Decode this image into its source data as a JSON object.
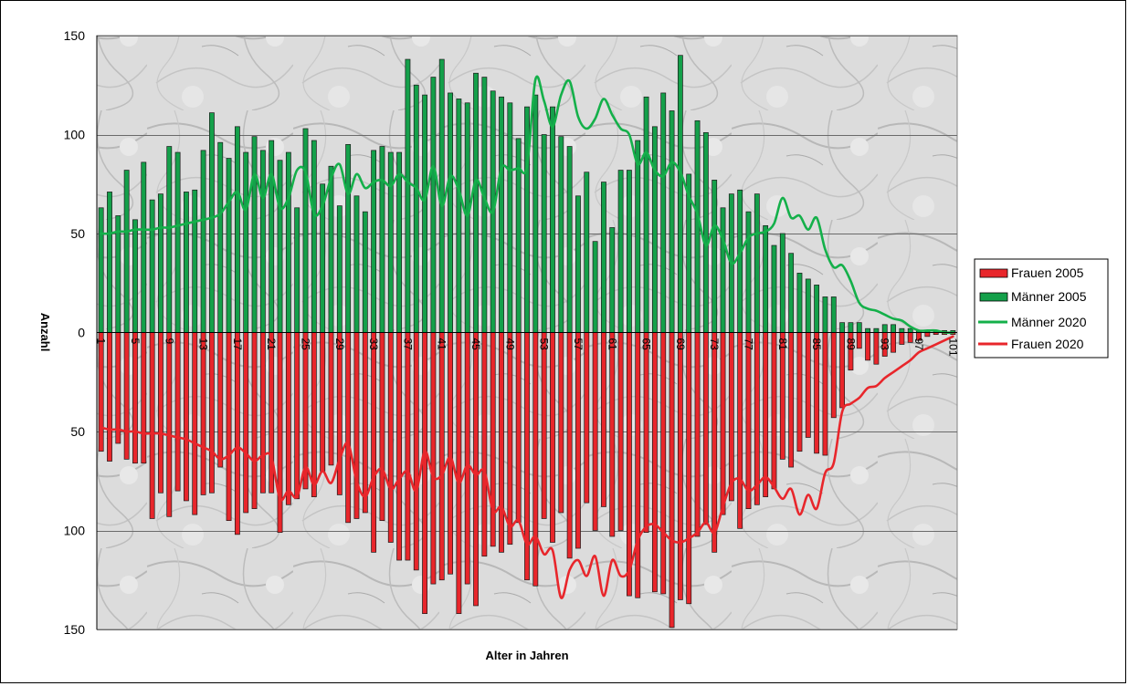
{
  "chart_data": {
    "type": "bar",
    "title": "",
    "xlabel": "Alter in Jahren",
    "ylabel": "Anzahl",
    "y_tick_labels": [
      "150",
      "100",
      "50",
      "0",
      "50",
      "100",
      "150"
    ],
    "ylim": [
      -150,
      150
    ],
    "grid": true,
    "legend_placement": "right",
    "x_tick_labels": [
      "1",
      "5",
      "9",
      "13",
      "17",
      "21",
      "25",
      "29",
      "33",
      "37",
      "41",
      "45",
      "49",
      "53",
      "57",
      "61",
      "65",
      "69",
      "73",
      "77",
      "81",
      "85",
      "89",
      "93",
      "97",
      "101"
    ],
    "x": [
      1,
      2,
      3,
      4,
      5,
      6,
      7,
      8,
      9,
      10,
      11,
      12,
      13,
      14,
      15,
      16,
      17,
      18,
      19,
      20,
      21,
      22,
      23,
      24,
      25,
      26,
      27,
      28,
      29,
      30,
      31,
      32,
      33,
      34,
      35,
      36,
      37,
      38,
      39,
      40,
      41,
      42,
      43,
      44,
      45,
      46,
      47,
      48,
      49,
      50,
      51,
      52,
      53,
      54,
      55,
      56,
      57,
      58,
      59,
      60,
      61,
      62,
      63,
      64,
      65,
      66,
      67,
      68,
      69,
      70,
      71,
      72,
      73,
      74,
      75,
      76,
      77,
      78,
      79,
      80,
      81,
      82,
      83,
      84,
      85,
      86,
      87,
      88,
      89,
      90,
      91,
      92,
      93,
      94,
      95,
      96,
      97,
      98,
      99,
      100,
      101
    ],
    "series": [
      {
        "name": "Frauen 2005",
        "kind": "bar",
        "color": "#e8262b",
        "values": [
          -60,
          -65,
          -56,
          -64,
          -66,
          -66,
          -94,
          -81,
          -93,
          -80,
          -85,
          -92,
          -82,
          -81,
          -68,
          -95,
          -102,
          -91,
          -89,
          -81,
          -81,
          -101,
          -87,
          -84,
          -79,
          -83,
          -70,
          -67,
          -82,
          -96,
          -94,
          -91,
          -111,
          -95,
          -106,
          -115,
          -115,
          -120,
          -142,
          -127,
          -125,
          -122,
          -142,
          -127,
          -138,
          -113,
          -108,
          -111,
          -107,
          -96,
          -125,
          -128,
          -94,
          -106,
          -91,
          -114,
          -109,
          -86,
          -100,
          -88,
          -103,
          -100,
          -133,
          -134,
          -101,
          -131,
          -132,
          -149,
          -135,
          -137,
          -103,
          -97,
          -111,
          -92,
          -85,
          -99,
          -89,
          -87,
          -83,
          -79,
          -64,
          -68,
          -60,
          -53,
          -61,
          -62,
          -43,
          -38,
          -19,
          -8,
          -14,
          -16,
          -12,
          -10,
          -6,
          -5,
          -4,
          -2,
          -1,
          -1,
          -1
        ]
      },
      {
        "name": "Männer 2005",
        "kind": "bar",
        "color": "#14a04a",
        "values": [
          63,
          71,
          59,
          82,
          57,
          86,
          67,
          70,
          94,
          91,
          71,
          72,
          92,
          111,
          96,
          88,
          104,
          91,
          99,
          92,
          97,
          87,
          91,
          63,
          103,
          97,
          75,
          84,
          64,
          95,
          69,
          61,
          92,
          94,
          91,
          91,
          138,
          125,
          120,
          129,
          138,
          121,
          118,
          116,
          131,
          129,
          122,
          119,
          116,
          98,
          114,
          120,
          100,
          114,
          99,
          94,
          69,
          81,
          46,
          76,
          53,
          82,
          82,
          97,
          119,
          104,
          121,
          112,
          140,
          80,
          107,
          101,
          77,
          63,
          70,
          72,
          61,
          70,
          54,
          44,
          50,
          40,
          30,
          27,
          24,
          18,
          18,
          5,
          5,
          5,
          2,
          2,
          4,
          4,
          2,
          2,
          1,
          1,
          1,
          1,
          1
        ]
      },
      {
        "name": "Männer 2020",
        "kind": "line",
        "color": "#14b04a",
        "values": [
          50,
          50,
          51,
          51,
          52,
          52,
          52,
          53,
          53,
          54,
          55,
          56,
          57,
          58,
          60,
          66,
          71,
          62,
          80,
          68,
          80,
          63,
          68,
          82,
          81,
          60,
          64,
          78,
          85,
          70,
          80,
          73,
          76,
          77,
          74,
          80,
          76,
          73,
          67,
          84,
          64,
          79,
          72,
          59,
          77,
          68,
          61,
          83,
          82,
          83,
          84,
          128,
          117,
          104,
          120,
          127,
          109,
          103,
          108,
          118,
          110,
          103,
          100,
          85,
          91,
          82,
          79,
          86,
          81,
          69,
          60,
          44,
          54,
          47,
          35,
          40,
          48,
          50,
          51,
          55,
          68,
          58,
          59,
          52,
          58,
          42,
          33,
          34,
          26,
          15,
          12,
          11,
          9,
          7,
          6,
          3,
          1,
          1,
          1,
          0,
          0
        ]
      },
      {
        "name": "Frauen 2020",
        "kind": "line",
        "color": "#e8262b",
        "values": [
          -48,
          -49,
          -49,
          -50,
          -50,
          -51,
          -51,
          -51,
          -52,
          -53,
          -54,
          -56,
          -58,
          -60,
          -64,
          -62,
          -58,
          -61,
          -65,
          -62,
          -63,
          -84,
          -80,
          -83,
          -68,
          -77,
          -70,
          -76,
          -64,
          -56,
          -75,
          -83,
          -73,
          -69,
          -79,
          -74,
          -70,
          -80,
          -60,
          -73,
          -72,
          -63,
          -76,
          -67,
          -72,
          -70,
          -90,
          -88,
          -98,
          -95,
          -107,
          -103,
          -112,
          -110,
          -134,
          -120,
          -115,
          -123,
          -113,
          -133,
          -115,
          -123,
          -120,
          -105,
          -98,
          -97,
          -101,
          -105,
          -106,
          -104,
          -101,
          -96,
          -101,
          -88,
          -76,
          -74,
          -80,
          -77,
          -73,
          -78,
          -84,
          -79,
          -92,
          -82,
          -89,
          -71,
          -66,
          -40,
          -36,
          -33,
          -28,
          -27,
          -23,
          -20,
          -17,
          -14,
          -10,
          -8,
          -6,
          -4,
          -2
        ]
      }
    ]
  }
}
